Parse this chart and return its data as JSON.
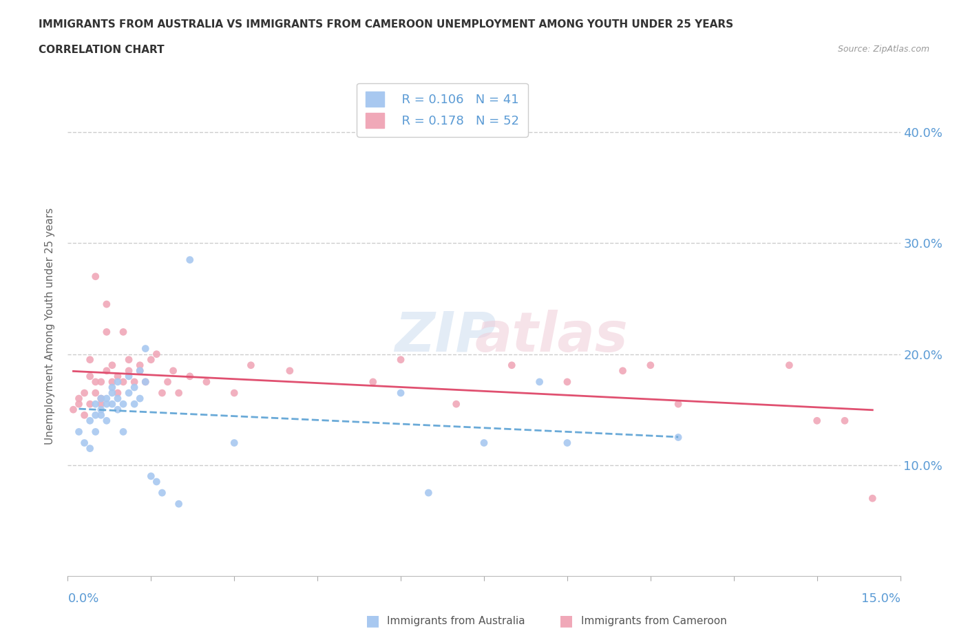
{
  "title_line1": "IMMIGRANTS FROM AUSTRALIA VS IMMIGRANTS FROM CAMEROON UNEMPLOYMENT AMONG YOUTH UNDER 25 YEARS",
  "title_line2": "CORRELATION CHART",
  "source_text": "Source: ZipAtlas.com",
  "ylabel": "Unemployment Among Youth under 25 years",
  "xlim": [
    0.0,
    0.15
  ],
  "ylim": [
    0.0,
    0.45
  ],
  "ytick_vals": [
    0.0,
    0.1,
    0.2,
    0.3,
    0.4
  ],
  "ytick_labels": [
    "",
    "10.0%",
    "20.0%",
    "30.0%",
    "40.0%"
  ],
  "legend_r1": "R = 0.106",
  "legend_n1": "N = 41",
  "legend_r2": "R = 0.178",
  "legend_n2": "N = 52",
  "color_australia": "#a8c8f0",
  "color_cameroon": "#f0a8b8",
  "color_line_australia": "#6aaad8",
  "color_line_cameroon": "#e05070",
  "color_axis_labels": "#5b9bd5",
  "color_grid": "#cccccc",
  "australia_x": [
    0.002,
    0.003,
    0.004,
    0.004,
    0.005,
    0.005,
    0.005,
    0.006,
    0.006,
    0.006,
    0.007,
    0.007,
    0.007,
    0.008,
    0.008,
    0.008,
    0.009,
    0.009,
    0.009,
    0.01,
    0.01,
    0.011,
    0.011,
    0.012,
    0.012,
    0.013,
    0.013,
    0.014,
    0.014,
    0.015,
    0.016,
    0.017,
    0.02,
    0.022,
    0.03,
    0.06,
    0.065,
    0.075,
    0.085,
    0.09,
    0.11
  ],
  "australia_y": [
    0.13,
    0.12,
    0.115,
    0.14,
    0.13,
    0.145,
    0.155,
    0.15,
    0.145,
    0.16,
    0.155,
    0.14,
    0.16,
    0.165,
    0.155,
    0.17,
    0.15,
    0.16,
    0.175,
    0.155,
    0.13,
    0.165,
    0.18,
    0.155,
    0.17,
    0.185,
    0.16,
    0.205,
    0.175,
    0.09,
    0.085,
    0.075,
    0.065,
    0.285,
    0.12,
    0.165,
    0.075,
    0.12,
    0.175,
    0.12,
    0.125
  ],
  "cameroon_x": [
    0.001,
    0.002,
    0.002,
    0.003,
    0.003,
    0.004,
    0.004,
    0.004,
    0.005,
    0.005,
    0.005,
    0.006,
    0.006,
    0.006,
    0.007,
    0.007,
    0.007,
    0.008,
    0.008,
    0.009,
    0.009,
    0.01,
    0.01,
    0.011,
    0.011,
    0.012,
    0.013,
    0.013,
    0.014,
    0.015,
    0.016,
    0.017,
    0.018,
    0.019,
    0.02,
    0.022,
    0.025,
    0.03,
    0.033,
    0.04,
    0.055,
    0.06,
    0.07,
    0.08,
    0.09,
    0.1,
    0.105,
    0.11,
    0.13,
    0.135,
    0.14,
    0.145
  ],
  "cameroon_y": [
    0.15,
    0.155,
    0.16,
    0.145,
    0.165,
    0.18,
    0.195,
    0.155,
    0.165,
    0.175,
    0.27,
    0.155,
    0.16,
    0.175,
    0.245,
    0.185,
    0.22,
    0.175,
    0.19,
    0.165,
    0.18,
    0.175,
    0.22,
    0.185,
    0.195,
    0.175,
    0.19,
    0.185,
    0.175,
    0.195,
    0.2,
    0.165,
    0.175,
    0.185,
    0.165,
    0.18,
    0.175,
    0.165,
    0.19,
    0.185,
    0.175,
    0.195,
    0.155,
    0.19,
    0.175,
    0.185,
    0.19,
    0.155,
    0.19,
    0.14,
    0.14,
    0.07
  ]
}
